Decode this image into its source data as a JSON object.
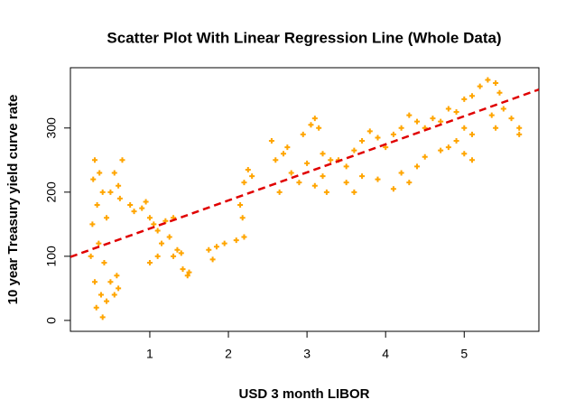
{
  "chart_data": {
    "type": "scatter",
    "title": "Scatter Plot With Linear Regression Line (Whole Data)",
    "x_label": "USD 3 month LIBOR",
    "y_label": "10 year Treasury yield curve rate",
    "color": "#FFA500",
    "regression_line": {
      "color": "#E00000",
      "x": [
        -0.01,
        5.95
      ],
      "y": [
        99,
        360
      ]
    },
    "xlim": [
      -0.01,
      5.95
    ],
    "ylim": [
      -17,
      394
    ],
    "xticks": [
      1,
      2,
      3,
      4,
      5
    ],
    "yticks": [
      0,
      100,
      200,
      300
    ],
    "x": [
      0.25,
      0.27,
      0.28,
      0.3,
      0.3,
      0.32,
      0.33,
      0.35,
      0.36,
      0.38,
      0.4,
      0.4,
      0.42,
      0.45,
      0.45,
      0.5,
      0.55,
      0.6,
      0.58,
      0.5,
      0.55,
      0.6,
      0.65,
      0.62,
      0.75,
      0.8,
      0.9,
      1.0,
      0.95,
      1.05,
      1.1,
      1.15,
      1.2,
      1.25,
      1.3,
      1.35,
      1.0,
      1.1,
      1.3,
      1.4,
      1.42,
      1.48,
      1.5,
      1.75,
      1.85,
      1.95,
      2.1,
      2.2,
      1.8,
      2.15,
      2.2,
      2.25,
      2.3,
      2.18,
      2.55,
      2.6,
      2.7,
      2.8,
      2.9,
      3.0,
      2.65,
      2.75,
      2.95,
      3.05,
      3.1,
      3.15,
      3.2,
      3.3,
      3.1,
      3.2,
      3.25,
      3.4,
      3.5,
      3.6,
      3.7,
      3.8,
      3.9,
      4.0,
      3.5,
      3.7,
      3.9,
      3.6,
      4.1,
      4.2,
      4.3,
      4.4,
      4.5,
      4.6,
      4.2,
      4.3,
      4.4,
      4.5,
      4.1,
      4.7,
      4.8,
      4.9,
      5.0,
      5.1,
      5.2,
      4.8,
      4.9,
      5.0,
      5.1,
      4.7,
      5.0,
      5.1,
      5.3,
      5.4,
      5.45,
      5.5,
      5.6,
      5.7,
      5.7,
      5.35,
      5.4
    ],
    "y": [
      100,
      150,
      220,
      250,
      60,
      20,
      180,
      120,
      230,
      40,
      5,
      200,
      90,
      160,
      30,
      60,
      40,
      50,
      70,
      200,
      230,
      210,
      250,
      190,
      180,
      170,
      175,
      160,
      185,
      150,
      140,
      120,
      155,
      130,
      160,
      110,
      90,
      100,
      100,
      105,
      80,
      70,
      75,
      110,
      115,
      120,
      125,
      130,
      95,
      180,
      215,
      235,
      225,
      160,
      280,
      250,
      260,
      230,
      215,
      245,
      200,
      270,
      290,
      305,
      315,
      300,
      260,
      250,
      210,
      225,
      200,
      250,
      240,
      265,
      280,
      295,
      285,
      270,
      215,
      225,
      220,
      200,
      290,
      300,
      320,
      310,
      300,
      315,
      230,
      215,
      240,
      255,
      205,
      310,
      330,
      325,
      345,
      350,
      365,
      270,
      280,
      260,
      250,
      265,
      300,
      290,
      375,
      370,
      355,
      330,
      315,
      300,
      290,
      320,
      300
    ]
  }
}
